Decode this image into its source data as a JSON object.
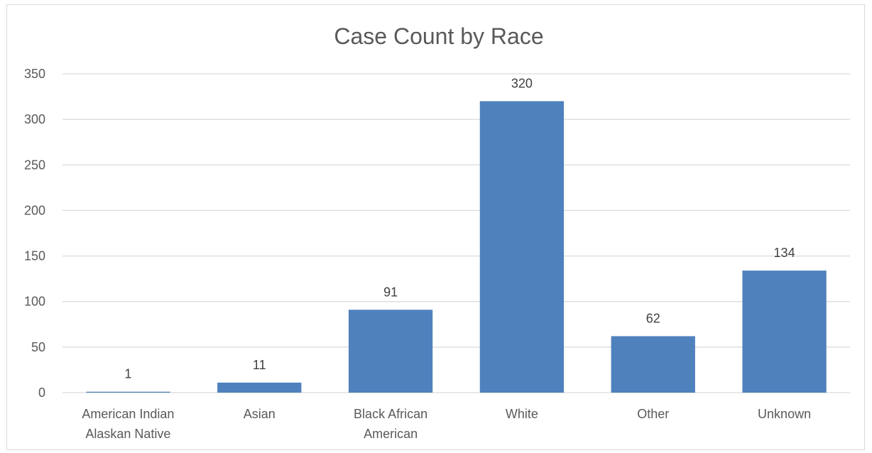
{
  "chart_data": {
    "type": "bar",
    "title": "Case Count by Race",
    "categories": [
      [
        "American Indian",
        "Alaskan Native"
      ],
      [
        "Asian"
      ],
      [
        "Black African",
        "American"
      ],
      [
        "White"
      ],
      [
        "Other"
      ],
      [
        "Unknown"
      ]
    ],
    "values": [
      1,
      11,
      91,
      320,
      62,
      134
    ],
    "ylim": [
      0,
      350
    ],
    "yticks": [
      0,
      50,
      100,
      150,
      200,
      250,
      300,
      350
    ],
    "grid": true,
    "data_labels": true,
    "bar_color": "#4f81bd",
    "grid_color": "#d9d9d9"
  }
}
